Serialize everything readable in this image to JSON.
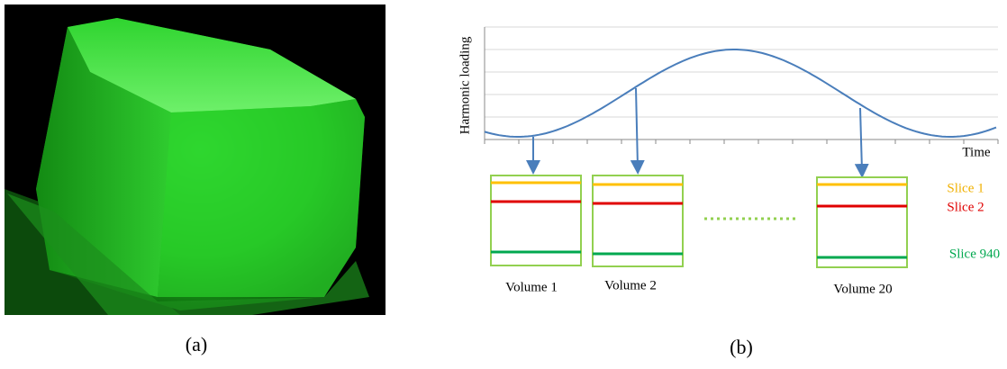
{
  "panel_a": {
    "caption": "(a)"
  },
  "panel_b": {
    "caption": "(b)",
    "y_axis_label": "Harmonic loading",
    "x_axis_label": "Time",
    "slices": [
      "Slice 1",
      "Slice 2",
      "Slice 940"
    ],
    "volumes": [
      "Volume 1",
      "Volume 2",
      "Volume 20"
    ]
  }
}
